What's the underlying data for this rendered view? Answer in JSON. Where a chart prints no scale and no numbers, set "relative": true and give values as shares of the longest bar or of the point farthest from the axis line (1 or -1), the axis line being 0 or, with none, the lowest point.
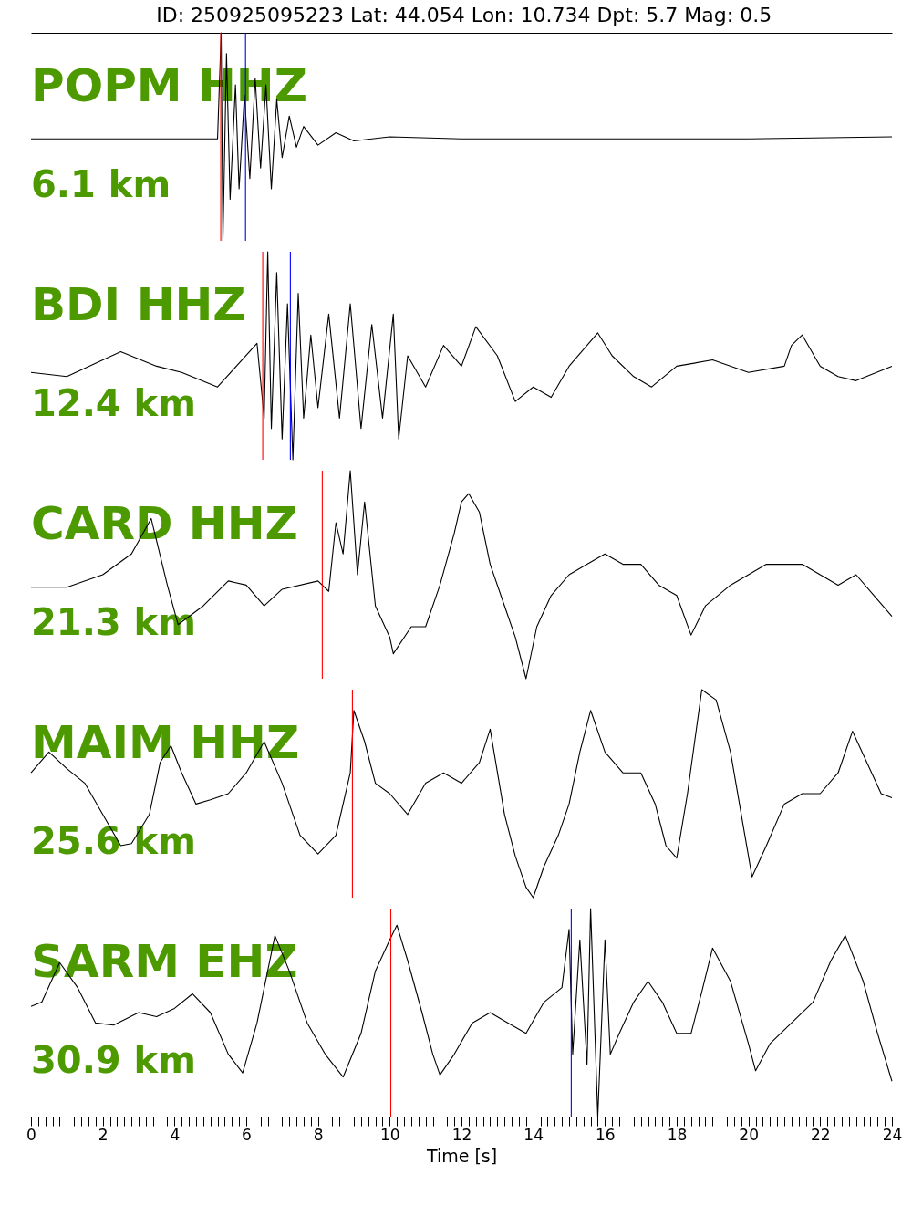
{
  "chart_data": [
    {
      "type": "line",
      "title": "ID: 250925095223 Lat:  44.054 Lon:  10.734 Dpt:     5.7 Mag:   0.5",
      "relative": true,
      "xlim": [
        0,
        24
      ],
      "tick_labels": false,
      "annotations": [
        "POPM HHZ",
        "6.1 km"
      ],
      "ref_lines": [
        {
          "axis": "x",
          "value": 5.29,
          "color": "#ff0000"
        },
        {
          "axis": "x",
          "value": 5.98,
          "color": "#0000ff"
        }
      ],
      "x": [
        0,
        2,
        4,
        5.2,
        5.3,
        5.35,
        5.45,
        5.55,
        5.7,
        5.8,
        5.95,
        6.1,
        6.25,
        6.4,
        6.55,
        6.7,
        6.85,
        7.0,
        7.2,
        7.4,
        7.6,
        8,
        8.5,
        9,
        10,
        12,
        16,
        20,
        24
      ],
      "series": [
        {
          "color": "#000000",
          "values": [
            0.49,
            0.49,
            0.49,
            0.49,
            1.0,
            0.0,
            0.9,
            0.2,
            0.75,
            0.25,
            0.7,
            0.3,
            0.78,
            0.35,
            0.75,
            0.25,
            0.68,
            0.4,
            0.6,
            0.45,
            0.55,
            0.46,
            0.52,
            0.48,
            0.5,
            0.49,
            0.49,
            0.49,
            0.5
          ]
        }
      ]
    },
    {
      "type": "line",
      "relative": true,
      "xlim": [
        0,
        24
      ],
      "tick_labels": false,
      "annotations": [
        "BDI HHZ",
        "12.4 km"
      ],
      "ref_lines": [
        {
          "axis": "x",
          "value": 6.46,
          "color": "#ff0000"
        },
        {
          "axis": "x",
          "value": 7.23,
          "color": "#0000ff"
        }
      ],
      "x": [
        0,
        1,
        2.5,
        3.5,
        4.2,
        5.2,
        6.3,
        6.5,
        6.6,
        6.7,
        6.85,
        7.0,
        7.15,
        7.3,
        7.45,
        7.6,
        7.8,
        8.0,
        8.3,
        8.6,
        8.9,
        9.2,
        9.5,
        9.8,
        10.1,
        10.25,
        10.5,
        11,
        11.5,
        12,
        12.4,
        13,
        13.5,
        14,
        14.5,
        15,
        15.8,
        16.2,
        16.8,
        17.3,
        18,
        19,
        20,
        21,
        21.2,
        21.5,
        22,
        22.5,
        23,
        24
      ],
      "series": [
        {
          "color": "#000000",
          "values": [
            0.42,
            0.4,
            0.52,
            0.45,
            0.42,
            0.35,
            0.56,
            0.2,
            1.0,
            0.15,
            0.9,
            0.1,
            0.75,
            0.0,
            0.8,
            0.2,
            0.6,
            0.25,
            0.7,
            0.2,
            0.75,
            0.15,
            0.65,
            0.2,
            0.7,
            0.1,
            0.5,
            0.35,
            0.55,
            0.45,
            0.64,
            0.5,
            0.28,
            0.35,
            0.3,
            0.45,
            0.61,
            0.5,
            0.4,
            0.35,
            0.45,
            0.48,
            0.42,
            0.45,
            0.55,
            0.6,
            0.45,
            0.4,
            0.38,
            0.45
          ]
        }
      ]
    },
    {
      "type": "line",
      "relative": true,
      "xlim": [
        0,
        24
      ],
      "tick_labels": false,
      "annotations": [
        "CARD HHZ",
        "21.3 km"
      ],
      "ref_lines": [
        {
          "axis": "x",
          "value": 8.12,
          "color": "#ff0000"
        }
      ],
      "x": [
        0,
        1,
        2,
        2.8,
        3.35,
        3.8,
        4.1,
        4.8,
        5.5,
        6,
        6.5,
        7,
        8,
        8.3,
        8.5,
        8.7,
        8.9,
        9.1,
        9.3,
        9.6,
        10,
        10.1,
        10.6,
        11,
        11.4,
        11.8,
        12.0,
        12.2,
        12.5,
        12.8,
        13.2,
        13.5,
        13.8,
        14.1,
        14.5,
        15,
        15.5,
        16,
        16.5,
        17,
        17.5,
        18,
        18.4,
        18.8,
        19.5,
        20,
        20.5,
        21,
        21.5,
        22,
        22.5,
        23,
        23.5,
        24
      ],
      "series": [
        {
          "color": "#000000",
          "values": [
            0.44,
            0.44,
            0.5,
            0.6,
            0.77,
            0.45,
            0.26,
            0.35,
            0.47,
            0.45,
            0.35,
            0.43,
            0.47,
            0.42,
            0.75,
            0.6,
            1.0,
            0.5,
            0.85,
            0.35,
            0.2,
            0.12,
            0.25,
            0.25,
            0.45,
            0.7,
            0.85,
            0.89,
            0.8,
            0.55,
            0.35,
            0.2,
            0.0,
            0.25,
            0.4,
            0.5,
            0.55,
            0.6,
            0.55,
            0.55,
            0.45,
            0.4,
            0.21,
            0.35,
            0.45,
            0.5,
            0.55,
            0.55,
            0.55,
            0.5,
            0.45,
            0.5,
            0.4,
            0.3
          ]
        }
      ]
    },
    {
      "type": "line",
      "relative": true,
      "xlim": [
        0,
        24
      ],
      "tick_labels": false,
      "annotations": [
        "MAIM HHZ",
        "25.6 km"
      ],
      "ref_lines": [
        {
          "axis": "x",
          "value": 8.96,
          "color": "#ff0000"
        }
      ],
      "x": [
        0,
        0.5,
        1.0,
        1.5,
        2.0,
        2.5,
        2.8,
        3.3,
        3.6,
        3.9,
        4.2,
        4.6,
        5,
        5.5,
        6,
        6.5,
        7,
        7.5,
        8,
        8.5,
        8.9,
        9.0,
        9.3,
        9.6,
        10,
        10.5,
        11,
        11.5,
        12,
        12.5,
        12.8,
        13.2,
        13.5,
        13.8,
        14.0,
        14.3,
        14.7,
        15,
        15.3,
        15.6,
        16,
        16.5,
        17,
        17.4,
        17.7,
        18,
        18.3,
        18.7,
        19.1,
        19.5,
        19.9,
        20.1,
        20.5,
        21,
        21.5,
        22,
        22.5,
        22.9,
        23.3,
        23.7,
        24
      ],
      "series": [
        {
          "color": "#000000",
          "values": [
            0.6,
            0.7,
            0.62,
            0.55,
            0.4,
            0.25,
            0.26,
            0.4,
            0.65,
            0.73,
            0.6,
            0.45,
            0.47,
            0.5,
            0.6,
            0.75,
            0.55,
            0.3,
            0.21,
            0.3,
            0.6,
            0.9,
            0.75,
            0.55,
            0.5,
            0.4,
            0.55,
            0.6,
            0.55,
            0.65,
            0.81,
            0.4,
            0.2,
            0.05,
            0.0,
            0.15,
            0.3,
            0.45,
            0.7,
            0.9,
            0.7,
            0.6,
            0.6,
            0.45,
            0.25,
            0.19,
            0.5,
            1.0,
            0.95,
            0.7,
            0.3,
            0.1,
            0.25,
            0.45,
            0.5,
            0.5,
            0.6,
            0.8,
            0.65,
            0.5,
            0.48
          ]
        }
      ]
    },
    {
      "type": "line",
      "relative": true,
      "xlim": [
        0,
        24
      ],
      "tick_labels": "x",
      "xlabel": "Time [s]",
      "annotations": [
        "SARM EHZ",
        "30.9 km"
      ],
      "ref_lines": [
        {
          "axis": "x",
          "value": 10.03,
          "color": "#ff0000"
        },
        {
          "axis": "x",
          "value": 15.06,
          "color": "#0000ff"
        }
      ],
      "xticks": [
        0,
        {
          "value": 0.2,
          "label": null
        },
        {
          "value": 0.4,
          "label": null
        },
        {
          "value": 0.6,
          "label": null
        },
        {
          "value": 0.8,
          "label": null
        },
        {
          "value": 1,
          "label": null
        },
        {
          "value": 1.2,
          "label": null
        },
        {
          "value": 1.4,
          "label": null
        },
        {
          "value": 1.6,
          "label": null
        },
        {
          "value": 1.8,
          "label": null
        },
        2,
        {
          "value": 2.2,
          "label": null
        },
        {
          "value": 2.4,
          "label": null
        },
        {
          "value": 2.6,
          "label": null
        },
        {
          "value": 2.8,
          "label": null
        },
        {
          "value": 3,
          "label": null
        },
        {
          "value": 3.2,
          "label": null
        },
        {
          "value": 3.4,
          "label": null
        },
        {
          "value": 3.6,
          "label": null
        },
        {
          "value": 3.8,
          "label": null
        },
        4,
        {
          "value": 4.2,
          "label": null
        },
        {
          "value": 4.4,
          "label": null
        },
        {
          "value": 4.6,
          "label": null
        },
        {
          "value": 4.8,
          "label": null
        },
        {
          "value": 5,
          "label": null
        },
        {
          "value": 5.2,
          "label": null
        },
        {
          "value": 5.4,
          "label": null
        },
        {
          "value": 5.6,
          "label": null
        },
        {
          "value": 5.8,
          "label": null
        },
        6,
        {
          "value": 6.2,
          "label": null
        },
        {
          "value": 6.4,
          "label": null
        },
        {
          "value": 6.6,
          "label": null
        },
        {
          "value": 6.8,
          "label": null
        },
        {
          "value": 7,
          "label": null
        },
        {
          "value": 7.2,
          "label": null
        },
        {
          "value": 7.4,
          "label": null
        },
        {
          "value": 7.6,
          "label": null
        },
        {
          "value": 7.8,
          "label": null
        },
        8,
        {
          "value": 8.2,
          "label": null
        },
        {
          "value": 8.4,
          "label": null
        },
        {
          "value": 8.6,
          "label": null
        },
        {
          "value": 8.8,
          "label": null
        },
        {
          "value": 9,
          "label": null
        },
        {
          "value": 9.2,
          "label": null
        },
        {
          "value": 9.4,
          "label": null
        },
        {
          "value": 9.6,
          "label": null
        },
        {
          "value": 9.8,
          "label": null
        },
        10,
        {
          "value": 10.2,
          "label": null
        },
        {
          "value": 10.4,
          "label": null
        },
        {
          "value": 10.6,
          "label": null
        },
        {
          "value": 10.8,
          "label": null
        },
        {
          "value": 11,
          "label": null
        },
        {
          "value": 11.2,
          "label": null
        },
        {
          "value": 11.4,
          "label": null
        },
        {
          "value": 11.6,
          "label": null
        },
        {
          "value": 11.8,
          "label": null
        },
        12,
        {
          "value": 12.2,
          "label": null
        },
        {
          "value": 12.4,
          "label": null
        },
        {
          "value": 12.6,
          "label": null
        },
        {
          "value": 12.8,
          "label": null
        },
        {
          "value": 13,
          "label": null
        },
        {
          "value": 13.2,
          "label": null
        },
        {
          "value": 13.4,
          "label": null
        },
        {
          "value": 13.6,
          "label": null
        },
        {
          "value": 13.8,
          "label": null
        },
        14,
        {
          "value": 14.2,
          "label": null
        },
        {
          "value": 14.4,
          "label": null
        },
        {
          "value": 14.6,
          "label": null
        },
        {
          "value": 14.8,
          "label": null
        },
        {
          "value": 15,
          "label": null
        },
        {
          "value": 15.2,
          "label": null
        },
        {
          "value": 15.4,
          "label": null
        },
        {
          "value": 15.6,
          "label": null
        },
        {
          "value": 15.8,
          "label": null
        },
        16,
        {
          "value": 16.2,
          "label": null
        },
        {
          "value": 16.4,
          "label": null
        },
        {
          "value": 16.6,
          "label": null
        },
        {
          "value": 16.8,
          "label": null
        },
        {
          "value": 17,
          "label": null
        },
        {
          "value": 17.2,
          "label": null
        },
        {
          "value": 17.4,
          "label": null
        },
        {
          "value": 17.6,
          "label": null
        },
        {
          "value": 17.8,
          "label": null
        },
        18,
        {
          "value": 18.2,
          "label": null
        },
        {
          "value": 18.4,
          "label": null
        },
        {
          "value": 18.6,
          "label": null
        },
        {
          "value": 18.8,
          "label": null
        },
        {
          "value": 19,
          "label": null
        },
        {
          "value": 19.2,
          "label": null
        },
        {
          "value": 19.4,
          "label": null
        },
        {
          "value": 19.6,
          "label": null
        },
        {
          "value": 19.8,
          "label": null
        },
        20,
        {
          "value": 20.2,
          "label": null
        },
        {
          "value": 20.4,
          "label": null
        },
        {
          "value": 20.6,
          "label": null
        },
        {
          "value": 20.8,
          "label": null
        },
        {
          "value": 21,
          "label": null
        },
        {
          "value": 21.2,
          "label": null
        },
        {
          "value": 21.4,
          "label": null
        },
        {
          "value": 21.6,
          "label": null
        },
        {
          "value": 21.8,
          "label": null
        },
        22,
        {
          "value": 22.2,
          "label": null
        },
        {
          "value": 22.4,
          "label": null
        },
        {
          "value": 22.6,
          "label": null
        },
        {
          "value": 22.8,
          "label": null
        },
        {
          "value": 23,
          "label": null
        },
        {
          "value": 23.2,
          "label": null
        },
        {
          "value": 23.4,
          "label": null
        },
        {
          "value": 23.6,
          "label": null
        },
        {
          "value": 23.8,
          "label": null
        },
        24
      ],
      "x": [
        0,
        0.3,
        0.8,
        1.3,
        1.8,
        2.3,
        3,
        3.5,
        4,
        4.5,
        5,
        5.5,
        5.9,
        6.3,
        6.8,
        7.2,
        7.7,
        8.2,
        8.7,
        9.2,
        9.6,
        10,
        10.2,
        10.5,
        10.9,
        11.2,
        11.4,
        11.8,
        12.3,
        12.8,
        13.3,
        13.8,
        14.3,
        14.8,
        15.0,
        15.1,
        15.3,
        15.5,
        15.6,
        15.8,
        16.0,
        16.15,
        16.4,
        16.8,
        17.2,
        17.6,
        18,
        18.4,
        18.7,
        19,
        19.5,
        20,
        20.2,
        20.6,
        21.2,
        21.8,
        22.3,
        22.7,
        23.2,
        23.6,
        24
      ],
      "series": [
        {
          "color": "#000000",
          "values": [
            0.53,
            0.55,
            0.74,
            0.62,
            0.45,
            0.44,
            0.5,
            0.48,
            0.52,
            0.59,
            0.5,
            0.3,
            0.21,
            0.45,
            0.87,
            0.7,
            0.45,
            0.3,
            0.19,
            0.4,
            0.7,
            0.85,
            0.92,
            0.75,
            0.5,
            0.3,
            0.2,
            0.3,
            0.45,
            0.5,
            0.45,
            0.4,
            0.55,
            0.62,
            0.9,
            0.3,
            0.85,
            0.25,
            1.0,
            0.0,
            0.85,
            0.3,
            0.4,
            0.55,
            0.65,
            0.55,
            0.4,
            0.4,
            0.6,
            0.81,
            0.65,
            0.35,
            0.22,
            0.35,
            0.45,
            0.55,
            0.75,
            0.87,
            0.65,
            0.4,
            0.17
          ]
        }
      ]
    }
  ]
}
